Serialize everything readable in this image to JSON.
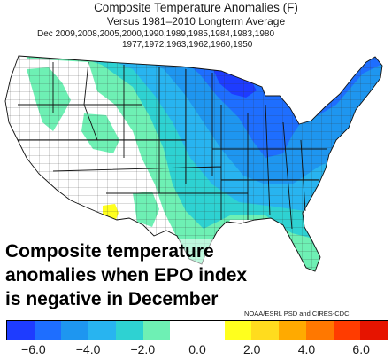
{
  "header": {
    "title": "Composite Temperature Anomalies (F)",
    "subtitle": "Versus 1981–2010 Longterm Average",
    "years_line1": "Dec   2009,2008,2005,2000,1990,1989,1985,1984,1983,1980",
    "years_line2": "1977,1972,1963,1962,1960,1950"
  },
  "overlay": {
    "line1": "Composite temperature",
    "line2": "anomalies when EPO index",
    "line3": "is negative in December"
  },
  "credit": "NOAA/ESRL PSD and CIRES-CDC",
  "colorbar": {
    "colors": [
      "#1e3cff",
      "#1e6eff",
      "#1e96f0",
      "#28b4f0",
      "#2ed2d2",
      "#6ef0b4",
      "#ffffff",
      "#ffffff",
      "#ffff1e",
      "#ffdc1e",
      "#ffaa00",
      "#ff7800",
      "#ff3c00",
      "#e61400"
    ],
    "labels": [
      "−6.0",
      "−4.0",
      "−2.0",
      "0.0",
      "2.0",
      "4.0",
      "6.0"
    ]
  },
  "map": {
    "colors": {
      "white": "#ffffff",
      "teal_light": "#6ef0b4",
      "cyan": "#2ed2d2",
      "sky": "#28b4f0",
      "blue": "#1e96f0",
      "blue_mid": "#1e6eff",
      "blue_dark": "#1e3cff",
      "yellow": "#ffff1e"
    }
  }
}
